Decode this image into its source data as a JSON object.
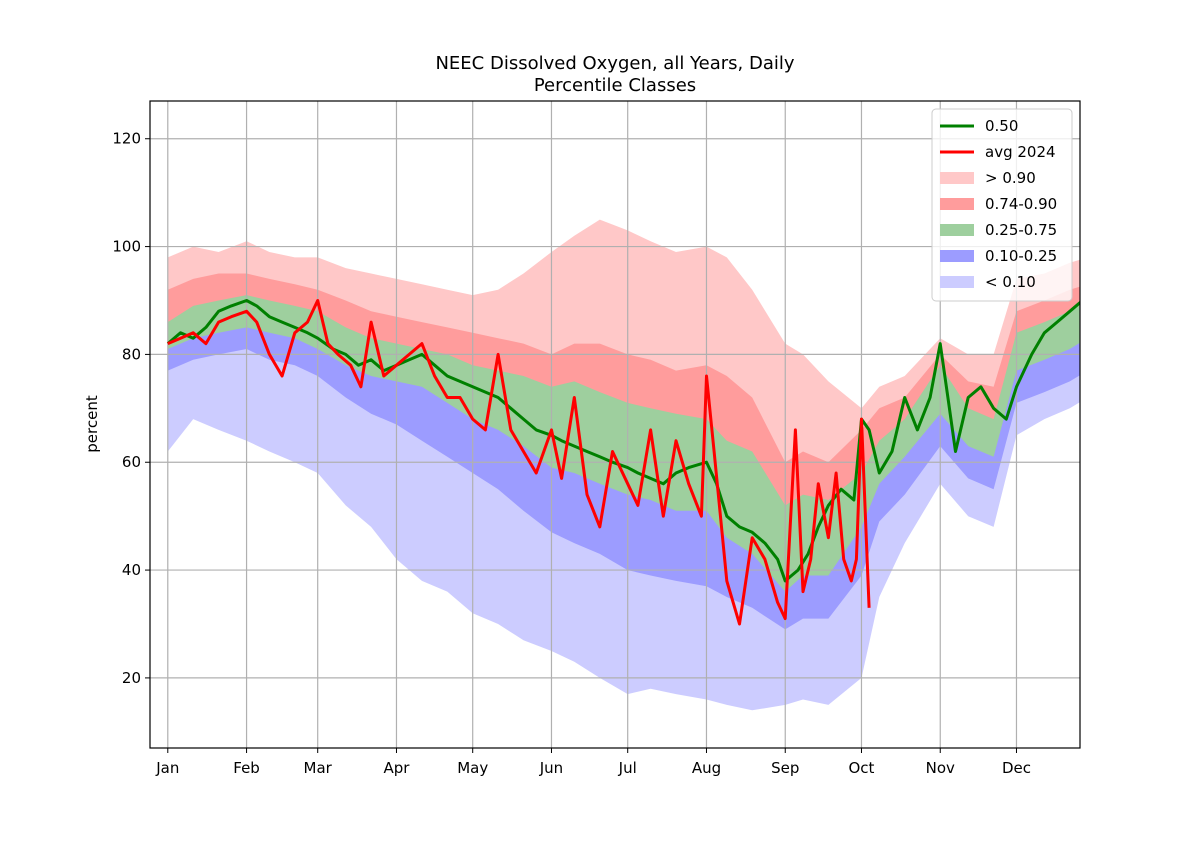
{
  "chart_data": {
    "type": "area",
    "title": "NEEC Dissolved Oxygen, all Years, Daily",
    "subtitle": "Percentile Classes",
    "xlabel": "",
    "ylabel": "percent",
    "ylim": [
      7,
      127
    ],
    "xlim": [
      -7,
      359
    ],
    "grid": true,
    "legend_position": "top-right",
    "x_unit": "day of year",
    "x_ticks": [
      {
        "label": "Jan",
        "day": 0
      },
      {
        "label": "Feb",
        "day": 31
      },
      {
        "label": "Mar",
        "day": 59
      },
      {
        "label": "Apr",
        "day": 90
      },
      {
        "label": "May",
        "day": 120
      },
      {
        "label": "Jun",
        "day": 151
      },
      {
        "label": "Jul",
        "day": 181
      },
      {
        "label": "Aug",
        "day": 212
      },
      {
        "label": "Sep",
        "day": 243
      },
      {
        "label": "Oct",
        "day": 273
      },
      {
        "label": "Nov",
        "day": 304
      },
      {
        "label": "Dec",
        "day": 334
      }
    ],
    "y_ticks": [
      20,
      40,
      60,
      80,
      100,
      120
    ],
    "x": [
      0,
      10,
      20,
      31,
      40,
      50,
      59,
      70,
      80,
      90,
      100,
      110,
      120,
      130,
      140,
      151,
      160,
      170,
      181,
      190,
      200,
      212,
      220,
      230,
      243,
      250,
      260,
      273,
      280,
      290,
      304,
      315,
      325,
      334,
      345,
      355,
      362
    ],
    "bands": [
      {
        "name": "> 0.90",
        "color": "#ffc8c8",
        "opacity": 1,
        "lower": [
          86,
          91,
          92,
          93,
          92,
          91,
          90,
          87,
          85,
          85,
          84,
          82,
          80,
          79,
          79,
          77,
          79,
          75,
          73,
          72,
          71,
          70,
          66,
          65,
          56,
          55,
          55,
          60,
          65,
          70,
          78,
          70,
          68,
          83,
          85,
          87,
          88
        ],
        "upper": [
          98,
          100,
          99,
          101,
          99,
          98,
          98,
          96,
          95,
          94,
          93,
          92,
          91,
          92,
          95,
          99,
          102,
          105,
          103,
          101,
          99,
          100,
          98,
          92,
          82,
          80,
          75,
          70,
          74,
          76,
          83,
          80,
          80,
          94,
          95,
          97,
          98
        ]
      },
      {
        "name": "0.74-0.90",
        "color": "#ff9c9c",
        "opacity": 1,
        "lower": [
          85,
          87,
          88,
          89,
          88,
          87,
          86,
          83,
          82,
          81,
          80,
          78,
          75,
          74,
          73,
          72,
          72,
          70,
          68,
          67,
          65,
          64,
          60,
          58,
          50,
          51,
          50,
          55,
          60,
          66,
          76,
          69,
          67,
          82,
          84,
          86,
          88
        ],
        "upper": [
          92,
          94,
          95,
          95,
          94,
          93,
          92,
          90,
          88,
          87,
          86,
          85,
          84,
          83,
          82,
          80,
          82,
          82,
          80,
          79,
          77,
          78,
          76,
          72,
          60,
          62,
          60,
          66,
          70,
          72,
          80,
          75,
          74,
          88,
          90,
          92,
          93
        ]
      },
      {
        "name": "0.25-0.75",
        "color": "#9ecf9e",
        "opacity": 1,
        "lower": [
          80,
          82,
          83,
          84,
          83,
          82,
          80,
          77,
          75,
          74,
          73,
          70,
          67,
          65,
          62,
          58,
          57,
          55,
          53,
          52,
          50,
          50,
          45,
          42,
          35,
          38,
          38,
          47,
          55,
          60,
          68,
          62,
          60,
          76,
          78,
          80,
          82
        ],
        "upper": [
          86,
          89,
          90,
          91,
          90,
          89,
          88,
          85,
          83,
          82,
          81,
          80,
          78,
          77,
          76,
          74,
          75,
          73,
          71,
          70,
          69,
          68,
          64,
          62,
          52,
          54,
          53,
          58,
          64,
          68,
          78,
          70,
          68,
          84,
          86,
          88,
          90
        ]
      },
      {
        "name": "0.10-0.25",
        "color": "#9c9cff",
        "opacity": 1,
        "lower": [
          76,
          78,
          80,
          80,
          78,
          77,
          75,
          71,
          68,
          66,
          63,
          60,
          57,
          54,
          50,
          46,
          44,
          42,
          39,
          38,
          37,
          36,
          34,
          32,
          28,
          30,
          30,
          38,
          48,
          53,
          62,
          56,
          54,
          70,
          72,
          74,
          76
        ],
        "upper": [
          81,
          83,
          84,
          85,
          84,
          83,
          81,
          78,
          76,
          75,
          74,
          71,
          68,
          66,
          63,
          59,
          58,
          56,
          54,
          53,
          51,
          51,
          46,
          43,
          36,
          39,
          39,
          48,
          56,
          61,
          69,
          63,
          61,
          77,
          79,
          81,
          83
        ]
      },
      {
        "name": "< 0.10",
        "color": "#ccccff",
        "opacity": 1,
        "lower": [
          62,
          68,
          66,
          64,
          62,
          60,
          58,
          52,
          48,
          42,
          38,
          36,
          32,
          30,
          27,
          25,
          23,
          20,
          17,
          18,
          17,
          16,
          15,
          14,
          15,
          16,
          15,
          20,
          35,
          45,
          56,
          50,
          48,
          65,
          68,
          70,
          72
        ],
        "upper": [
          77,
          79,
          80,
          81,
          79,
          78,
          76,
          72,
          69,
          67,
          64,
          61,
          58,
          55,
          51,
          47,
          45,
          43,
          40,
          39,
          38,
          37,
          35,
          33,
          29,
          31,
          31,
          39,
          49,
          54,
          63,
          57,
          55,
          71,
          73,
          75,
          77
        ]
      }
    ],
    "series": [
      {
        "name": "0.50",
        "color": "#008000",
        "x": [
          0,
          5,
          10,
          15,
          20,
          25,
          31,
          35,
          40,
          45,
          50,
          55,
          59,
          65,
          70,
          75,
          80,
          85,
          90,
          95,
          100,
          105,
          110,
          115,
          120,
          125,
          130,
          135,
          140,
          145,
          151,
          155,
          160,
          165,
          170,
          175,
          181,
          185,
          190,
          195,
          200,
          205,
          212,
          216,
          220,
          225,
          230,
          235,
          240,
          243,
          248,
          252,
          256,
          260,
          265,
          270,
          273,
          276,
          280,
          285,
          290,
          295,
          300,
          304,
          307,
          310,
          315,
          320,
          325,
          330,
          334,
          340,
          345,
          350,
          355,
          360
        ],
        "values": [
          82,
          84,
          83,
          85,
          88,
          89,
          90,
          89,
          87,
          86,
          85,
          84,
          83,
          81,
          80,
          78,
          79,
          77,
          78,
          79,
          80,
          78,
          76,
          75,
          74,
          73,
          72,
          70,
          68,
          66,
          65,
          64,
          63,
          62,
          61,
          60,
          59,
          58,
          57,
          56,
          58,
          59,
          60,
          56,
          50,
          48,
          47,
          45,
          42,
          38,
          40,
          43,
          48,
          52,
          55,
          53,
          68,
          66,
          58,
          62,
          72,
          66,
          72,
          82,
          72,
          62,
          72,
          74,
          70,
          68,
          74,
          80,
          84,
          86,
          88,
          90
        ]
      },
      {
        "name": "avg 2024",
        "color": "#ff0000",
        "x": [
          0,
          5,
          10,
          15,
          20,
          25,
          31,
          35,
          40,
          45,
          50,
          55,
          59,
          63,
          67,
          72,
          76,
          80,
          85,
          90,
          95,
          100,
          105,
          110,
          115,
          120,
          125,
          130,
          135,
          140,
          145,
          151,
          155,
          160,
          165,
          170,
          175,
          181,
          185,
          190,
          195,
          200,
          205,
          210,
          212,
          215,
          220,
          225,
          230,
          235,
          240,
          243,
          247,
          250,
          253,
          256,
          260,
          263,
          266,
          269,
          271,
          273,
          276
        ],
        "values": [
          82,
          83,
          84,
          82,
          86,
          87,
          88,
          86,
          80,
          76,
          84,
          86,
          90,
          82,
          80,
          78,
          74,
          86,
          76,
          78,
          80,
          82,
          76,
          72,
          72,
          68,
          66,
          80,
          66,
          62,
          58,
          66,
          57,
          72,
          54,
          48,
          62,
          56,
          52,
          66,
          50,
          64,
          56,
          50,
          76,
          62,
          38,
          30,
          46,
          42,
          34,
          31,
          66,
          36,
          42,
          56,
          46,
          58,
          42,
          38,
          42,
          68,
          33
        ]
      }
    ]
  }
}
